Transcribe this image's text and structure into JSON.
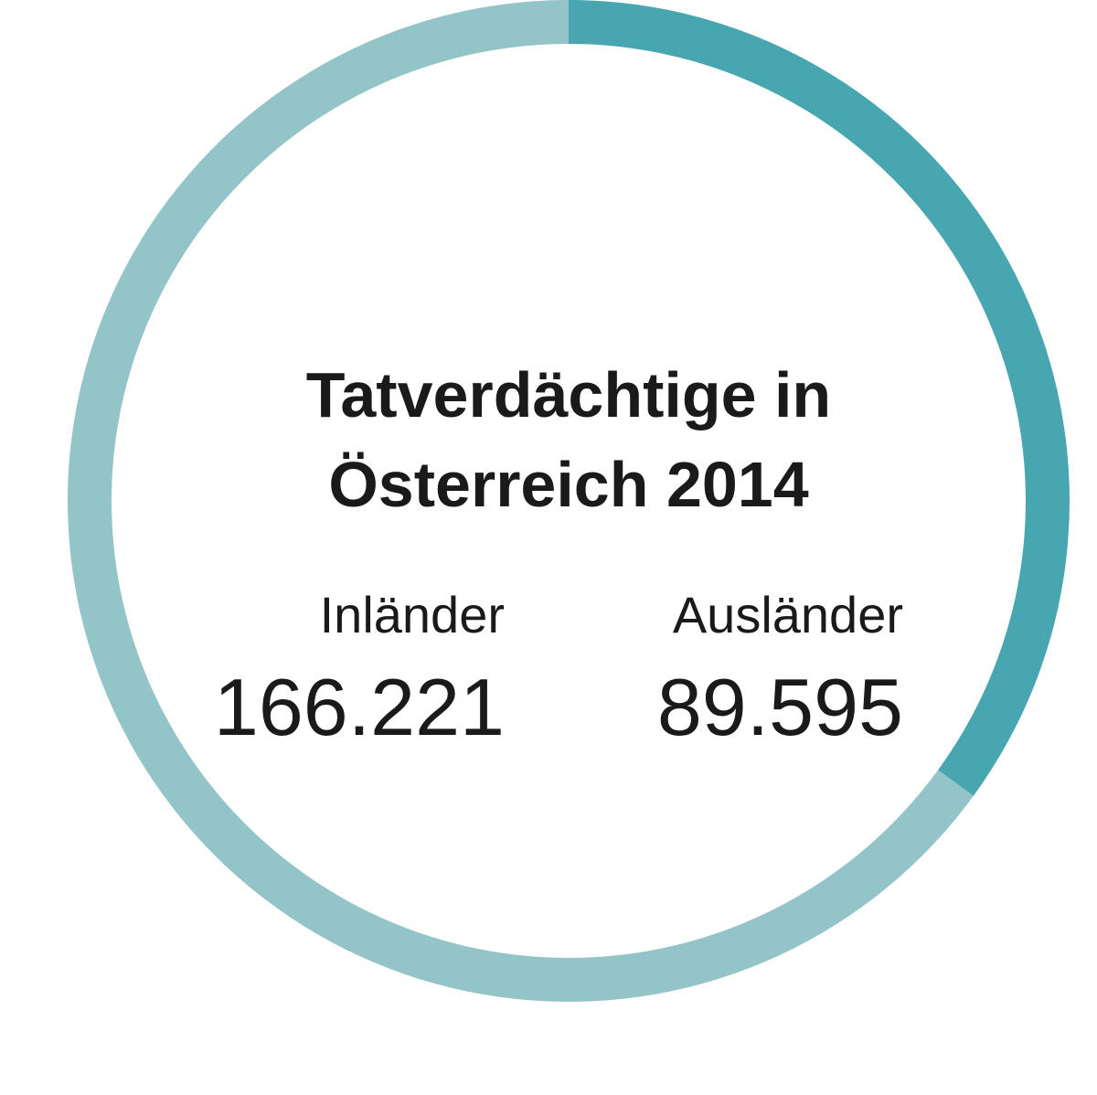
{
  "chart_data": {
    "type": "pie",
    "variant": "donut",
    "title": "Tatverdächtige in Österreich 2014",
    "title_lines": [
      "Tatverdächtige in",
      "Österreich 2014"
    ],
    "categories": [
      "Inländer",
      "Ausländer"
    ],
    "values": [
      166221,
      89595
    ],
    "value_labels": [
      "166.221",
      "89.595"
    ],
    "colors": [
      "#93c4c8",
      "#47a6b0"
    ],
    "start_angle": "top (12 o'clock)",
    "direction": "clockwise starting with Ausländer",
    "legend": "none",
    "grid": false
  }
}
